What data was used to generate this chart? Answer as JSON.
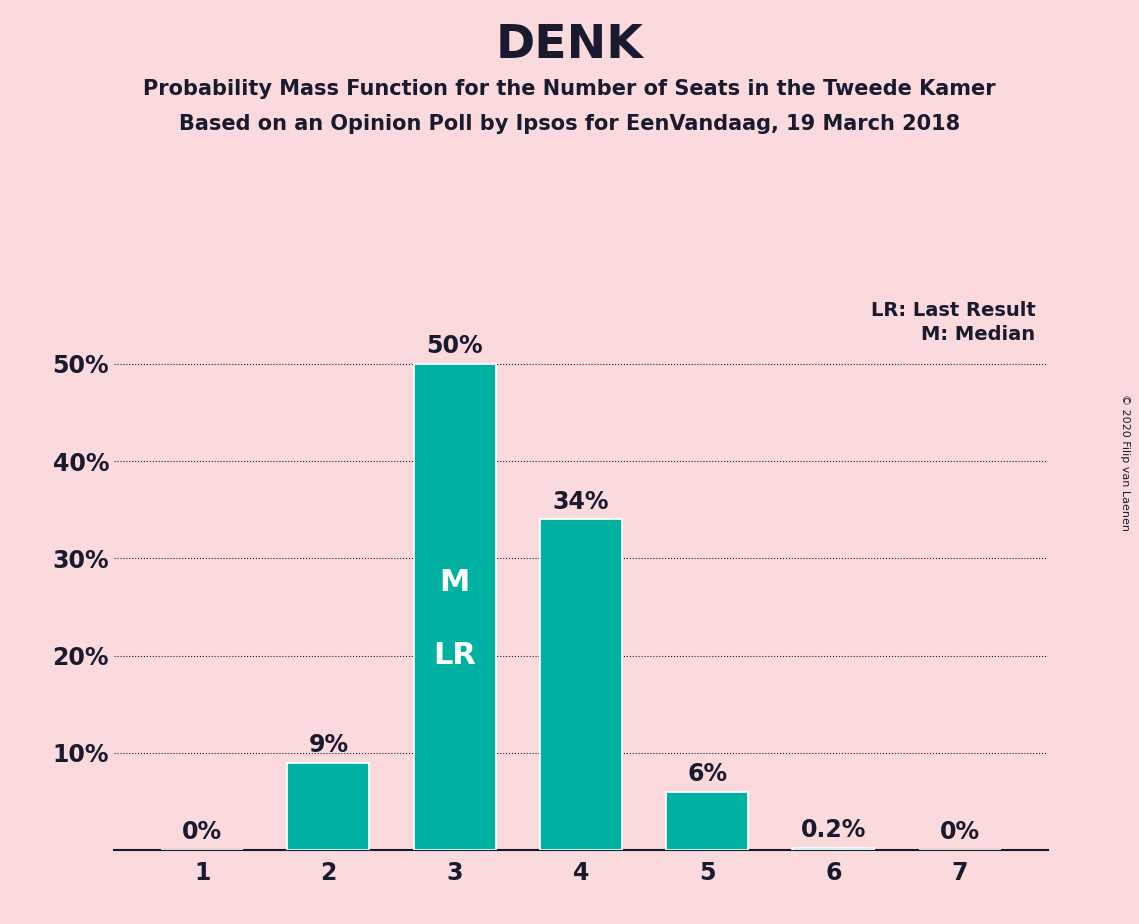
{
  "title": "DENK",
  "subtitle1": "Probability Mass Function for the Number of Seats in the Tweede Kamer",
  "subtitle2": "Based on an Opinion Poll by Ipsos for EenVandaag, 19 March 2018",
  "copyright": "© 2020 Filip van Laenen",
  "categories": [
    1,
    2,
    3,
    4,
    5,
    6,
    7
  ],
  "values": [
    0.0,
    9.0,
    50.0,
    34.0,
    6.0,
    0.2,
    0.0
  ],
  "bar_labels": [
    "0%",
    "9%",
    "50%",
    "34%",
    "6%",
    "0.2%",
    "0%"
  ],
  "bar_color": "#00b0a0",
  "background_color": "#fadadd",
  "text_color": "#1a1a2e",
  "ylabel_ticks": [
    0,
    10,
    20,
    30,
    40,
    50
  ],
  "ylim": [
    0,
    57
  ],
  "median_seat": 3,
  "last_result_seat": 3,
  "median_label": "M",
  "lr_label": "LR",
  "legend_lr": "LR: Last Result",
  "legend_m": "M: Median"
}
